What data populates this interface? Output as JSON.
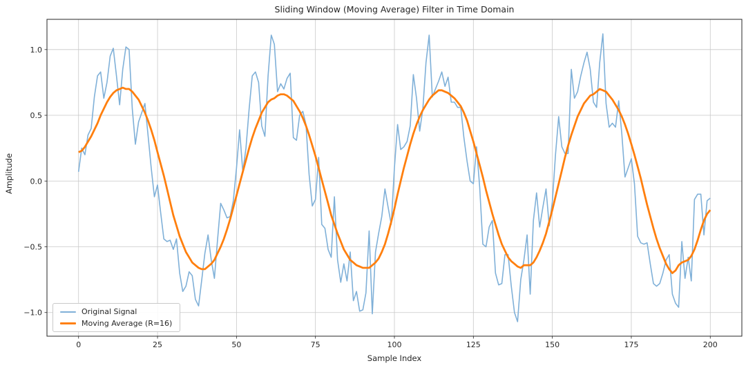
{
  "figure": {
    "title": "Sliding Window (Moving Average) Filter in Time Domain",
    "xlabel": "Sample Index",
    "ylabel": "Amplitude"
  },
  "legend": {
    "position": "lower left",
    "items": [
      {
        "label": "Original Signal",
        "color": "#7fb0d8"
      },
      {
        "label": "Moving Average (R=16)",
        "color": "#ff7f0e"
      }
    ]
  },
  "chart_data": {
    "type": "line",
    "title": "Sliding Window (Moving Average) Filter in Time Domain",
    "xlabel": "Sample Index",
    "ylabel": "Amplitude",
    "xlim": [
      -10,
      210
    ],
    "ylim": [
      -1.18,
      1.23
    ],
    "x_ticks": [
      0,
      25,
      50,
      75,
      100,
      125,
      150,
      175,
      200
    ],
    "x_tick_labels": [
      "0",
      "25",
      "50",
      "75",
      "100",
      "125",
      "150",
      "175",
      "200"
    ],
    "y_ticks": [
      -1.0,
      -0.5,
      0.0,
      0.5,
      1.0
    ],
    "y_tick_labels": [
      "−1.0",
      "−0.5",
      "0.0",
      "0.5",
      "1.0"
    ],
    "grid": true,
    "grid_color": "#c8c8c8",
    "spine_color": "#262626",
    "legend_position": "lower left",
    "x": [
      0,
      1,
      2,
      3,
      4,
      5,
      6,
      7,
      8,
      9,
      10,
      11,
      12,
      13,
      14,
      15,
      16,
      17,
      18,
      19,
      20,
      21,
      22,
      23,
      24,
      25,
      26,
      27,
      28,
      29,
      30,
      31,
      32,
      33,
      34,
      35,
      36,
      37,
      38,
      39,
      40,
      41,
      42,
      43,
      44,
      45,
      46,
      47,
      48,
      49,
      50,
      51,
      52,
      53,
      54,
      55,
      56,
      57,
      58,
      59,
      60,
      61,
      62,
      63,
      64,
      65,
      66,
      67,
      68,
      69,
      70,
      71,
      72,
      73,
      74,
      75,
      76,
      77,
      78,
      79,
      80,
      81,
      82,
      83,
      84,
      85,
      86,
      87,
      88,
      89,
      90,
      91,
      92,
      93,
      94,
      95,
      96,
      97,
      98,
      99,
      100,
      101,
      102,
      103,
      104,
      105,
      106,
      107,
      108,
      109,
      110,
      111,
      112,
      113,
      114,
      115,
      116,
      117,
      118,
      119,
      120,
      121,
      122,
      123,
      124,
      125,
      126,
      127,
      128,
      129,
      130,
      131,
      132,
      133,
      134,
      135,
      136,
      137,
      138,
      139,
      140,
      141,
      142,
      143,
      144,
      145,
      146,
      147,
      148,
      149,
      150,
      151,
      152,
      153,
      154,
      155,
      156,
      157,
      158,
      159,
      160,
      161,
      162,
      163,
      164,
      165,
      166,
      167,
      168,
      169,
      170,
      171,
      172,
      173,
      174,
      175,
      176,
      177,
      178,
      179,
      180,
      181,
      182,
      183,
      184,
      185,
      186,
      187,
      188,
      189,
      190,
      191,
      192,
      193,
      194,
      195,
      196,
      197,
      198,
      199,
      200
    ],
    "series": [
      {
        "name": "Original Signal",
        "color": "#7fb0d8",
        "linewidth": 1.6,
        "values": [
          0.07,
          0.25,
          0.2,
          0.35,
          0.4,
          0.64,
          0.8,
          0.83,
          0.63,
          0.75,
          0.95,
          1.01,
          0.8,
          0.58,
          0.85,
          1.02,
          1.0,
          0.55,
          0.28,
          0.45,
          0.52,
          0.59,
          0.35,
          0.1,
          -0.12,
          -0.03,
          -0.24,
          -0.44,
          -0.46,
          -0.45,
          -0.52,
          -0.44,
          -0.7,
          -0.84,
          -0.8,
          -0.69,
          -0.72,
          -0.9,
          -0.95,
          -0.75,
          -0.55,
          -0.41,
          -0.6,
          -0.74,
          -0.45,
          -0.17,
          -0.22,
          -0.28,
          -0.27,
          -0.15,
          0.1,
          0.39,
          0.07,
          0.25,
          0.55,
          0.8,
          0.83,
          0.75,
          0.42,
          0.34,
          0.8,
          1.11,
          1.04,
          0.68,
          0.74,
          0.7,
          0.78,
          0.82,
          0.33,
          0.31,
          0.5,
          0.53,
          0.43,
          0.05,
          -0.19,
          -0.14,
          0.18,
          -0.33,
          -0.36,
          -0.52,
          -0.58,
          -0.12,
          -0.6,
          -0.77,
          -0.63,
          -0.76,
          -0.54,
          -0.91,
          -0.84,
          -0.99,
          -0.98,
          -0.85,
          -0.38,
          -1.01,
          -0.54,
          -0.4,
          -0.27,
          -0.06,
          -0.2,
          -0.33,
          0.1,
          0.43,
          0.24,
          0.26,
          0.3,
          0.42,
          0.81,
          0.63,
          0.38,
          0.55,
          0.9,
          1.11,
          0.64,
          0.7,
          0.76,
          0.83,
          0.72,
          0.79,
          0.6,
          0.6,
          0.56,
          0.56,
          0.33,
          0.15,
          0.0,
          -0.02,
          0.26,
          -0.05,
          -0.48,
          -0.5,
          -0.35,
          -0.3,
          -0.7,
          -0.79,
          -0.78,
          -0.56,
          -0.56,
          -0.8,
          -1.0,
          -1.07,
          -0.75,
          -0.6,
          -0.41,
          -0.86,
          -0.3,
          -0.09,
          -0.35,
          -0.2,
          -0.06,
          -0.34,
          -0.16,
          0.2,
          0.49,
          0.26,
          0.21,
          0.21,
          0.85,
          0.63,
          0.68,
          0.8,
          0.9,
          0.98,
          0.85,
          0.6,
          0.56,
          0.9,
          1.12,
          0.59,
          0.41,
          0.44,
          0.41,
          0.61,
          0.36,
          0.03,
          0.1,
          0.17,
          -0.02,
          -0.42,
          -0.47,
          -0.48,
          -0.47,
          -0.63,
          -0.78,
          -0.8,
          -0.78,
          -0.7,
          -0.6,
          -0.56,
          -0.86,
          -0.93,
          -0.96,
          -0.46,
          -0.74,
          -0.58,
          -0.76,
          -0.14,
          -0.1,
          -0.1,
          -0.41,
          -0.15,
          -0.13
        ]
      },
      {
        "name": "Moving Average (R=16)",
        "color": "#ff7f0e",
        "linewidth": 2.8,
        "values": [
          0.22,
          0.23,
          0.26,
          0.3,
          0.34,
          0.39,
          0.44,
          0.5,
          0.55,
          0.6,
          0.64,
          0.67,
          0.69,
          0.7,
          0.71,
          0.7,
          0.7,
          0.68,
          0.65,
          0.62,
          0.57,
          0.52,
          0.46,
          0.39,
          0.31,
          0.22,
          0.13,
          0.04,
          -0.06,
          -0.16,
          -0.26,
          -0.34,
          -0.42,
          -0.48,
          -0.54,
          -0.58,
          -0.62,
          -0.64,
          -0.66,
          -0.67,
          -0.67,
          -0.65,
          -0.63,
          -0.6,
          -0.55,
          -0.5,
          -0.44,
          -0.37,
          -0.29,
          -0.2,
          -0.11,
          -0.02,
          0.07,
          0.16,
          0.25,
          0.33,
          0.4,
          0.46,
          0.52,
          0.56,
          0.6,
          0.62,
          0.63,
          0.65,
          0.66,
          0.66,
          0.65,
          0.63,
          0.61,
          0.57,
          0.53,
          0.48,
          0.42,
          0.35,
          0.27,
          0.19,
          0.1,
          0.01,
          -0.08,
          -0.17,
          -0.26,
          -0.33,
          -0.4,
          -0.46,
          -0.52,
          -0.56,
          -0.6,
          -0.62,
          -0.64,
          -0.65,
          -0.66,
          -0.66,
          -0.66,
          -0.64,
          -0.62,
          -0.59,
          -0.54,
          -0.48,
          -0.4,
          -0.31,
          -0.21,
          -0.1,
          0.0,
          0.1,
          0.19,
          0.28,
          0.36,
          0.43,
          0.49,
          0.54,
          0.58,
          0.62,
          0.65,
          0.67,
          0.69,
          0.69,
          0.68,
          0.67,
          0.65,
          0.63,
          0.6,
          0.57,
          0.52,
          0.46,
          0.38,
          0.3,
          0.21,
          0.12,
          0.03,
          -0.07,
          -0.16,
          -0.25,
          -0.33,
          -0.41,
          -0.48,
          -0.53,
          -0.58,
          -0.61,
          -0.63,
          -0.65,
          -0.66,
          -0.64,
          -0.64,
          -0.64,
          -0.62,
          -0.58,
          -0.53,
          -0.47,
          -0.4,
          -0.31,
          -0.22,
          -0.12,
          -0.02,
          0.08,
          0.18,
          0.27,
          0.35,
          0.42,
          0.49,
          0.54,
          0.59,
          0.62,
          0.65,
          0.66,
          0.68,
          0.7,
          0.69,
          0.68,
          0.65,
          0.62,
          0.58,
          0.54,
          0.49,
          0.43,
          0.36,
          0.28,
          0.2,
          0.11,
          0.02,
          -0.08,
          -0.18,
          -0.27,
          -0.36,
          -0.44,
          -0.51,
          -0.57,
          -0.63,
          -0.67,
          -0.7,
          -0.68,
          -0.64,
          -0.62,
          -0.61,
          -0.6,
          -0.57,
          -0.52,
          -0.45,
          -0.37,
          -0.3,
          -0.25,
          -0.22
        ]
      }
    ]
  }
}
